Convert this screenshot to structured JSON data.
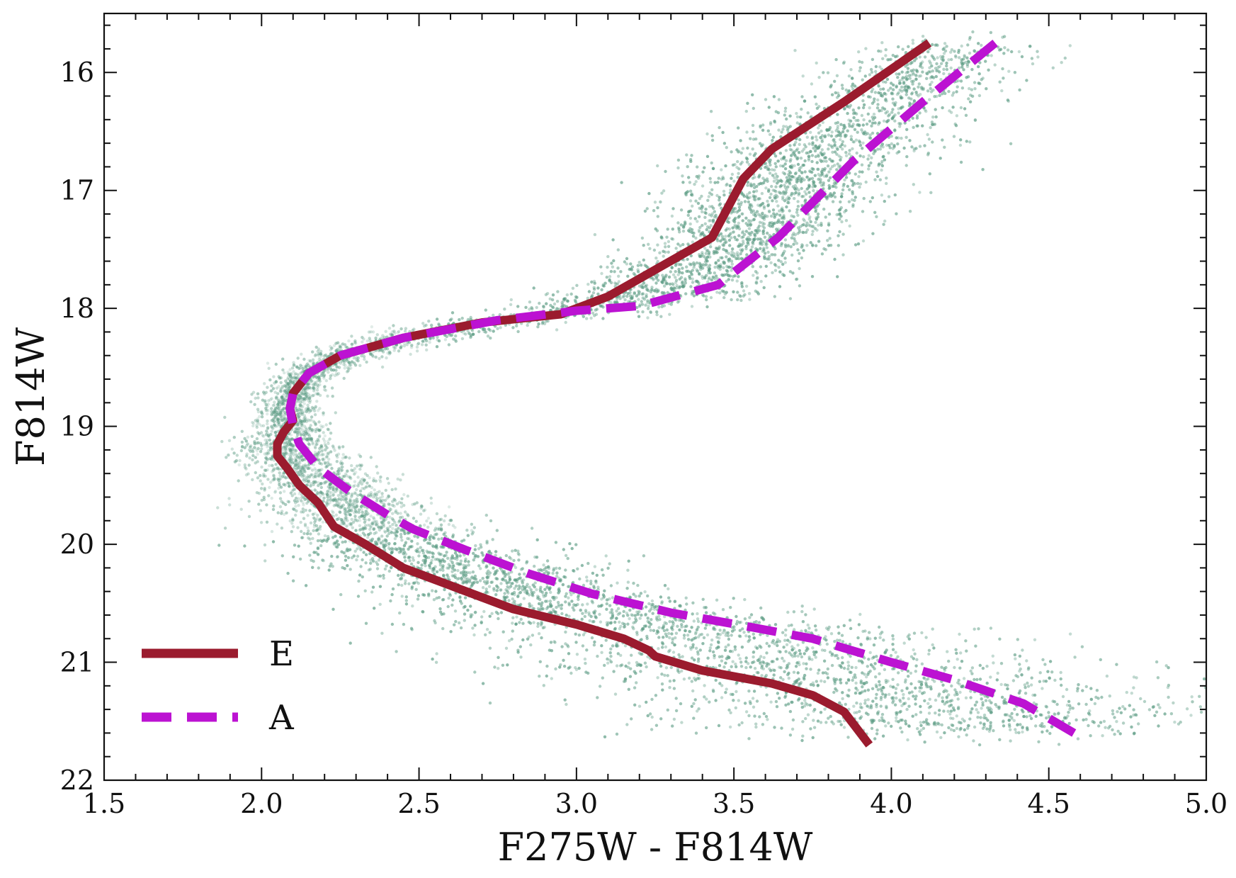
{
  "chart_data": {
    "type": "scatter",
    "xlabel": "F275W - F814W",
    "ylabel": "F814W",
    "xlim": [
      1.5,
      5.0
    ],
    "ylim": [
      22.0,
      15.5
    ],
    "y_inverted": true,
    "xticks": [
      "1.5",
      "2.0",
      "2.5",
      "3.0",
      "3.5",
      "4.0",
      "4.5",
      "5.0"
    ],
    "yticks": [
      "16",
      "17",
      "18",
      "19",
      "20",
      "21",
      "22"
    ],
    "grid": false,
    "legend_position": "lower-left",
    "point_color": "#5c9c84",
    "series": [
      {
        "name": "E",
        "style": "solid",
        "color": "#9b1b2e",
        "x": [
          4.12,
          3.85,
          3.62,
          3.53,
          3.43,
          3.1,
          2.95,
          2.7,
          2.45,
          2.25,
          2.15,
          2.1,
          2.09,
          2.1,
          2.07,
          2.05,
          2.05,
          2.08,
          2.12,
          2.18,
          2.23,
          2.33,
          2.45,
          2.6,
          2.8,
          3.0,
          3.15,
          3.23,
          3.25,
          3.4,
          3.62,
          3.75,
          3.85,
          3.93
        ],
        "y": [
          15.75,
          16.25,
          16.65,
          16.9,
          17.4,
          17.9,
          18.05,
          18.12,
          18.25,
          18.4,
          18.55,
          18.72,
          18.85,
          18.95,
          19.05,
          19.15,
          19.25,
          19.35,
          19.5,
          19.65,
          19.85,
          20.0,
          20.2,
          20.35,
          20.55,
          20.68,
          20.8,
          20.9,
          20.95,
          21.07,
          21.18,
          21.28,
          21.42,
          21.7
        ]
      },
      {
        "name": "A",
        "style": "dashed",
        "color": "#bc12d2",
        "x": [
          4.33,
          4.1,
          3.88,
          3.64,
          3.45,
          3.2,
          3.0,
          2.75,
          2.45,
          2.25,
          2.15,
          2.1,
          2.09,
          2.1,
          2.12,
          2.18,
          2.28,
          2.4,
          2.48,
          2.65,
          2.85,
          3.05,
          3.3,
          3.55,
          3.75,
          3.85,
          4.0,
          4.2,
          4.42,
          4.58
        ],
        "y": [
          15.75,
          16.25,
          16.75,
          17.4,
          17.8,
          17.98,
          18.02,
          18.1,
          18.25,
          18.4,
          18.55,
          18.72,
          18.85,
          19.0,
          19.15,
          19.35,
          19.55,
          19.75,
          19.87,
          20.05,
          20.25,
          20.42,
          20.58,
          20.7,
          20.8,
          20.88,
          21.0,
          21.15,
          21.35,
          21.6
        ]
      }
    ]
  }
}
